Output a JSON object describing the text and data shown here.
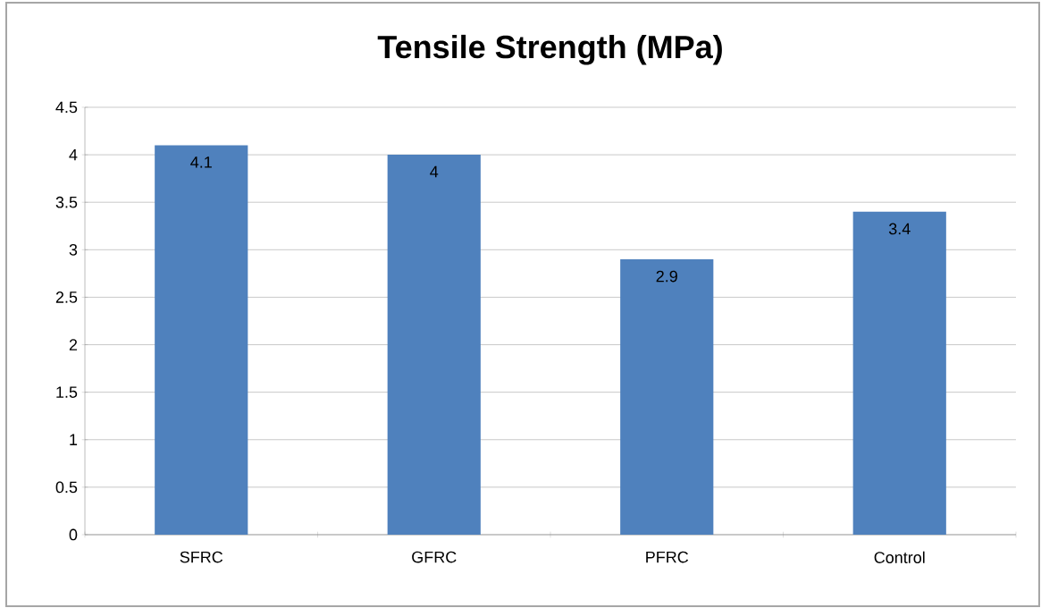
{
  "chart_data": {
    "type": "bar",
    "title": "Tensile Strength (MPa)",
    "categories": [
      "SFRC",
      "GFRC",
      "PFRC",
      "Control"
    ],
    "values": [
      4.1,
      4,
      2.9,
      3.4
    ],
    "color": "#4f81bd",
    "ylim": [
      0,
      4.5
    ],
    "yticks": [
      0,
      0.5,
      1,
      1.5,
      2,
      2.5,
      3,
      3.5,
      4,
      4.5
    ],
    "grid": "y",
    "data_labels": true
  }
}
